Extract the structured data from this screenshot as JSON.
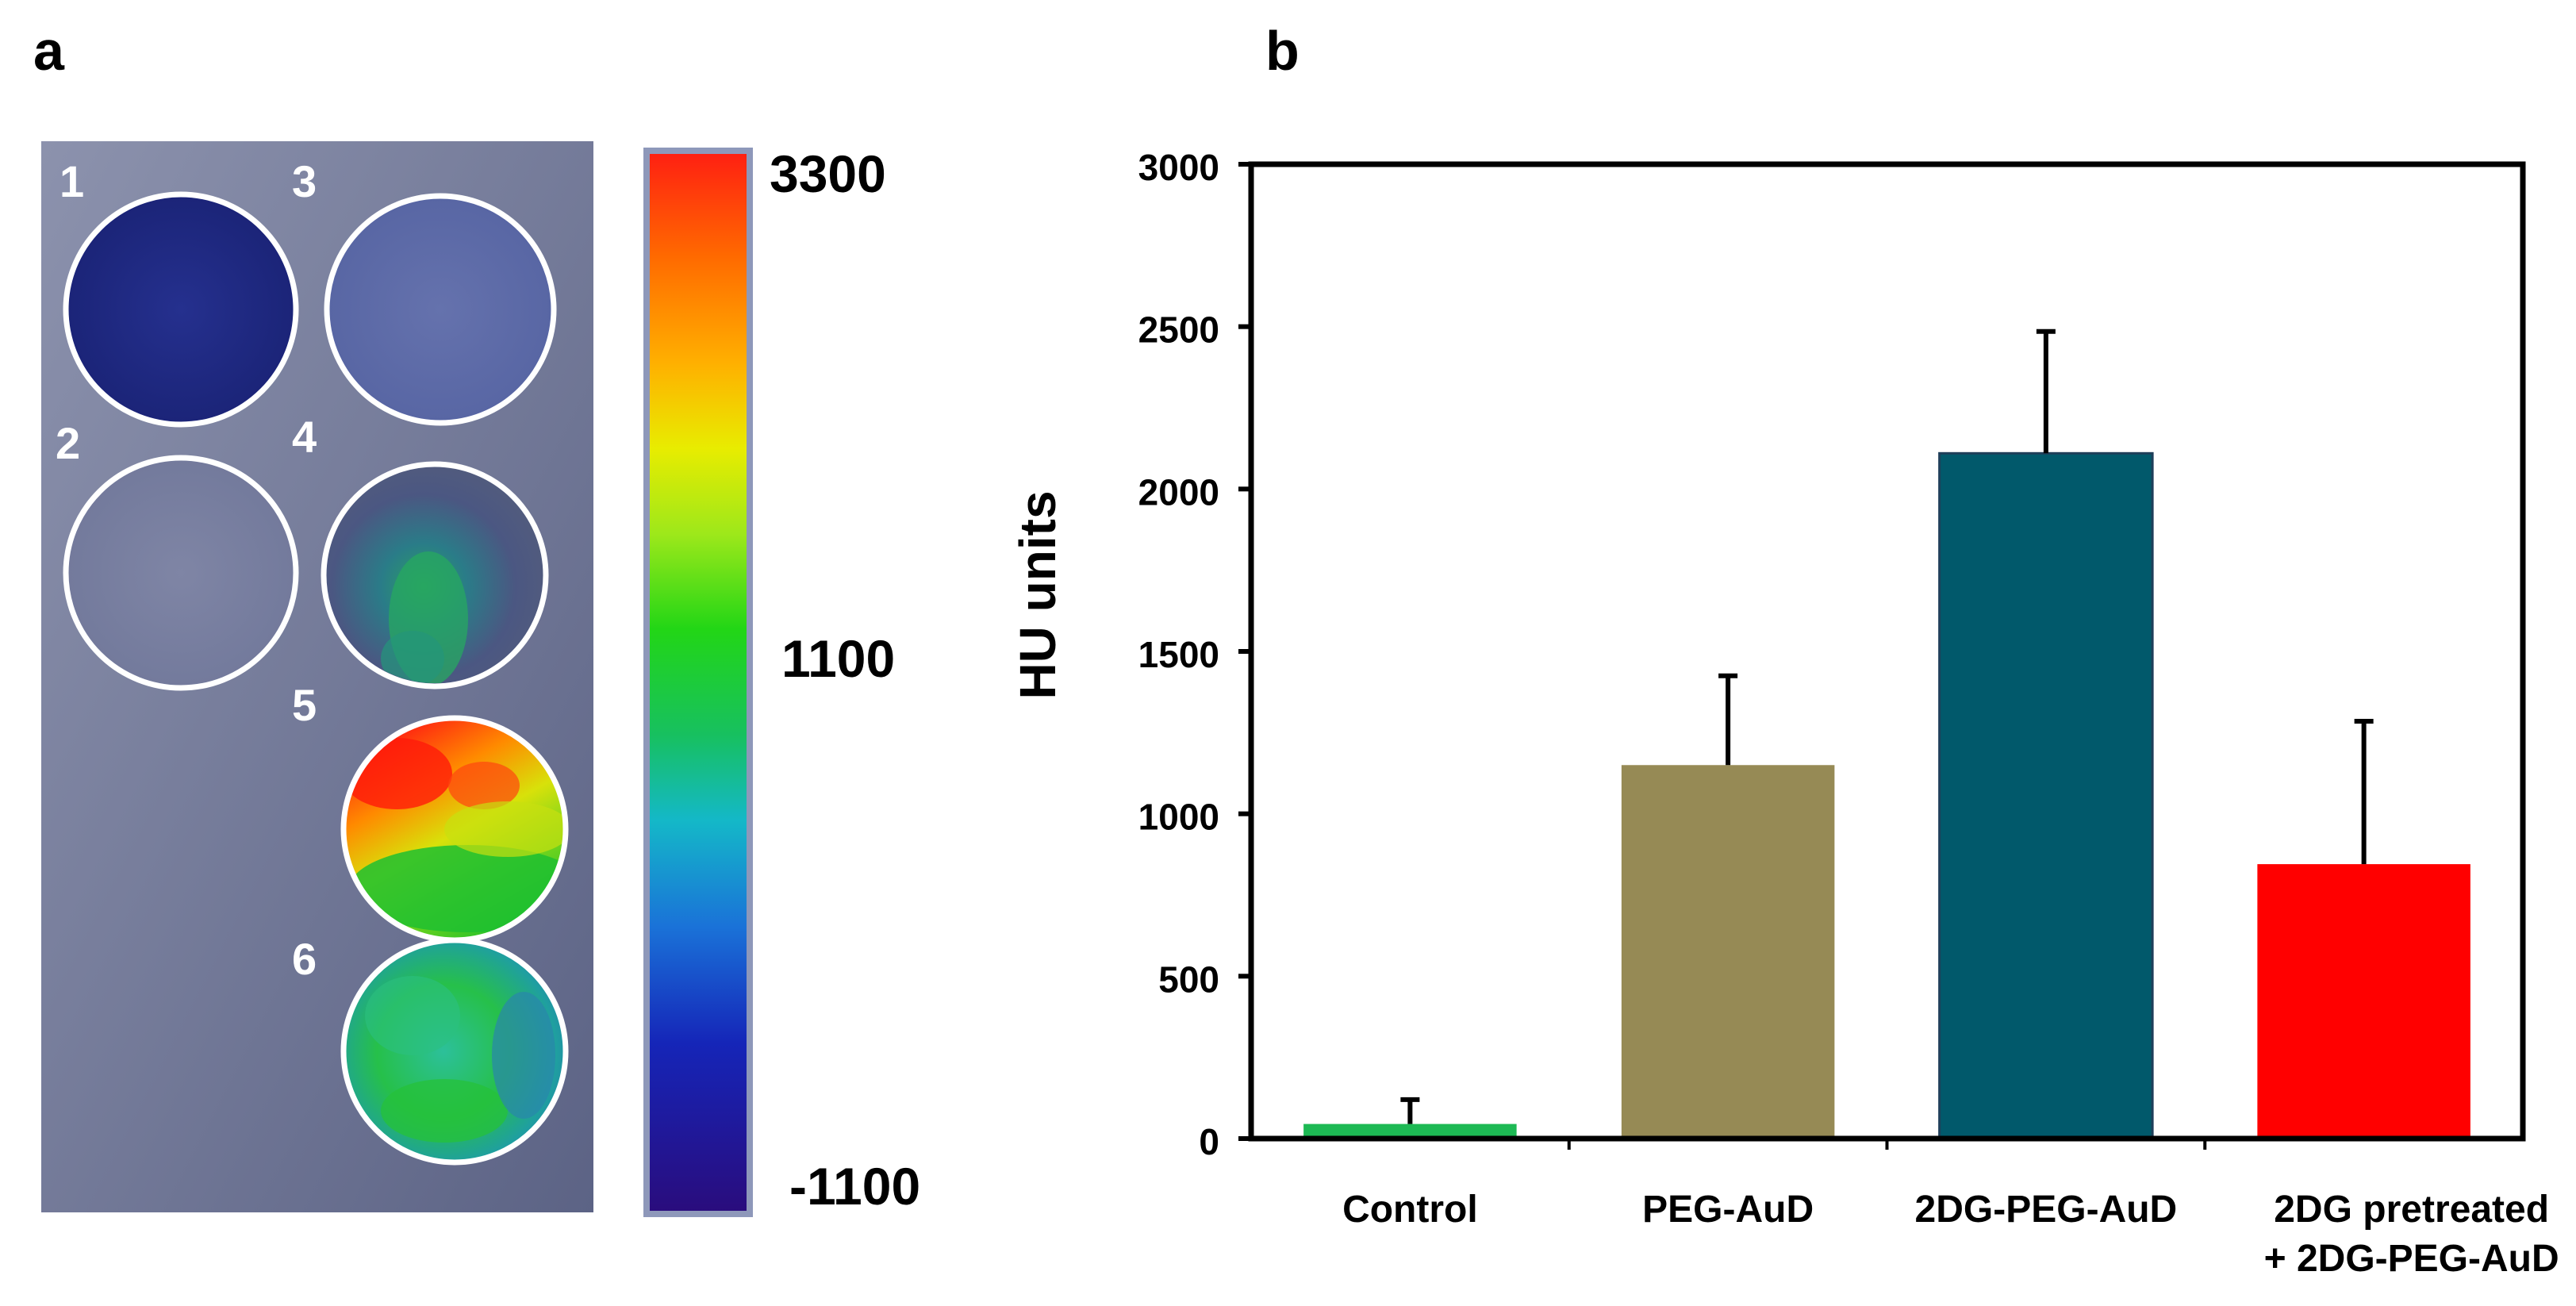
{
  "panel_a": {
    "label": "a",
    "well_labels": [
      "1",
      "2",
      "3",
      "4",
      "5",
      "6"
    ],
    "colorbar": {
      "labels": [
        "3300",
        "1100",
        "-1100"
      ],
      "max": 3300,
      "mid": 1100,
      "min": -1100
    }
  },
  "panel_b": {
    "label": "b"
  },
  "chart_data": {
    "type": "bar",
    "title": "",
    "xlabel": "",
    "ylabel": "HU units",
    "ylim": [
      0,
      3000
    ],
    "yticks": [
      0,
      500,
      1000,
      1500,
      2000,
      2500,
      3000
    ],
    "categories": [
      [
        "Control"
      ],
      [
        "PEG-AuD"
      ],
      [
        "2DG-PEG-AuD"
      ],
      [
        "2DG pretreated",
        "+ 2DG-PEG-AuD"
      ]
    ],
    "values": [
      45,
      1150,
      2110,
      845
    ],
    "errors": [
      75,
      275,
      375,
      440
    ],
    "colors": [
      "#1db954",
      "#968a55",
      "#01596b",
      "#ff0000"
    ]
  }
}
